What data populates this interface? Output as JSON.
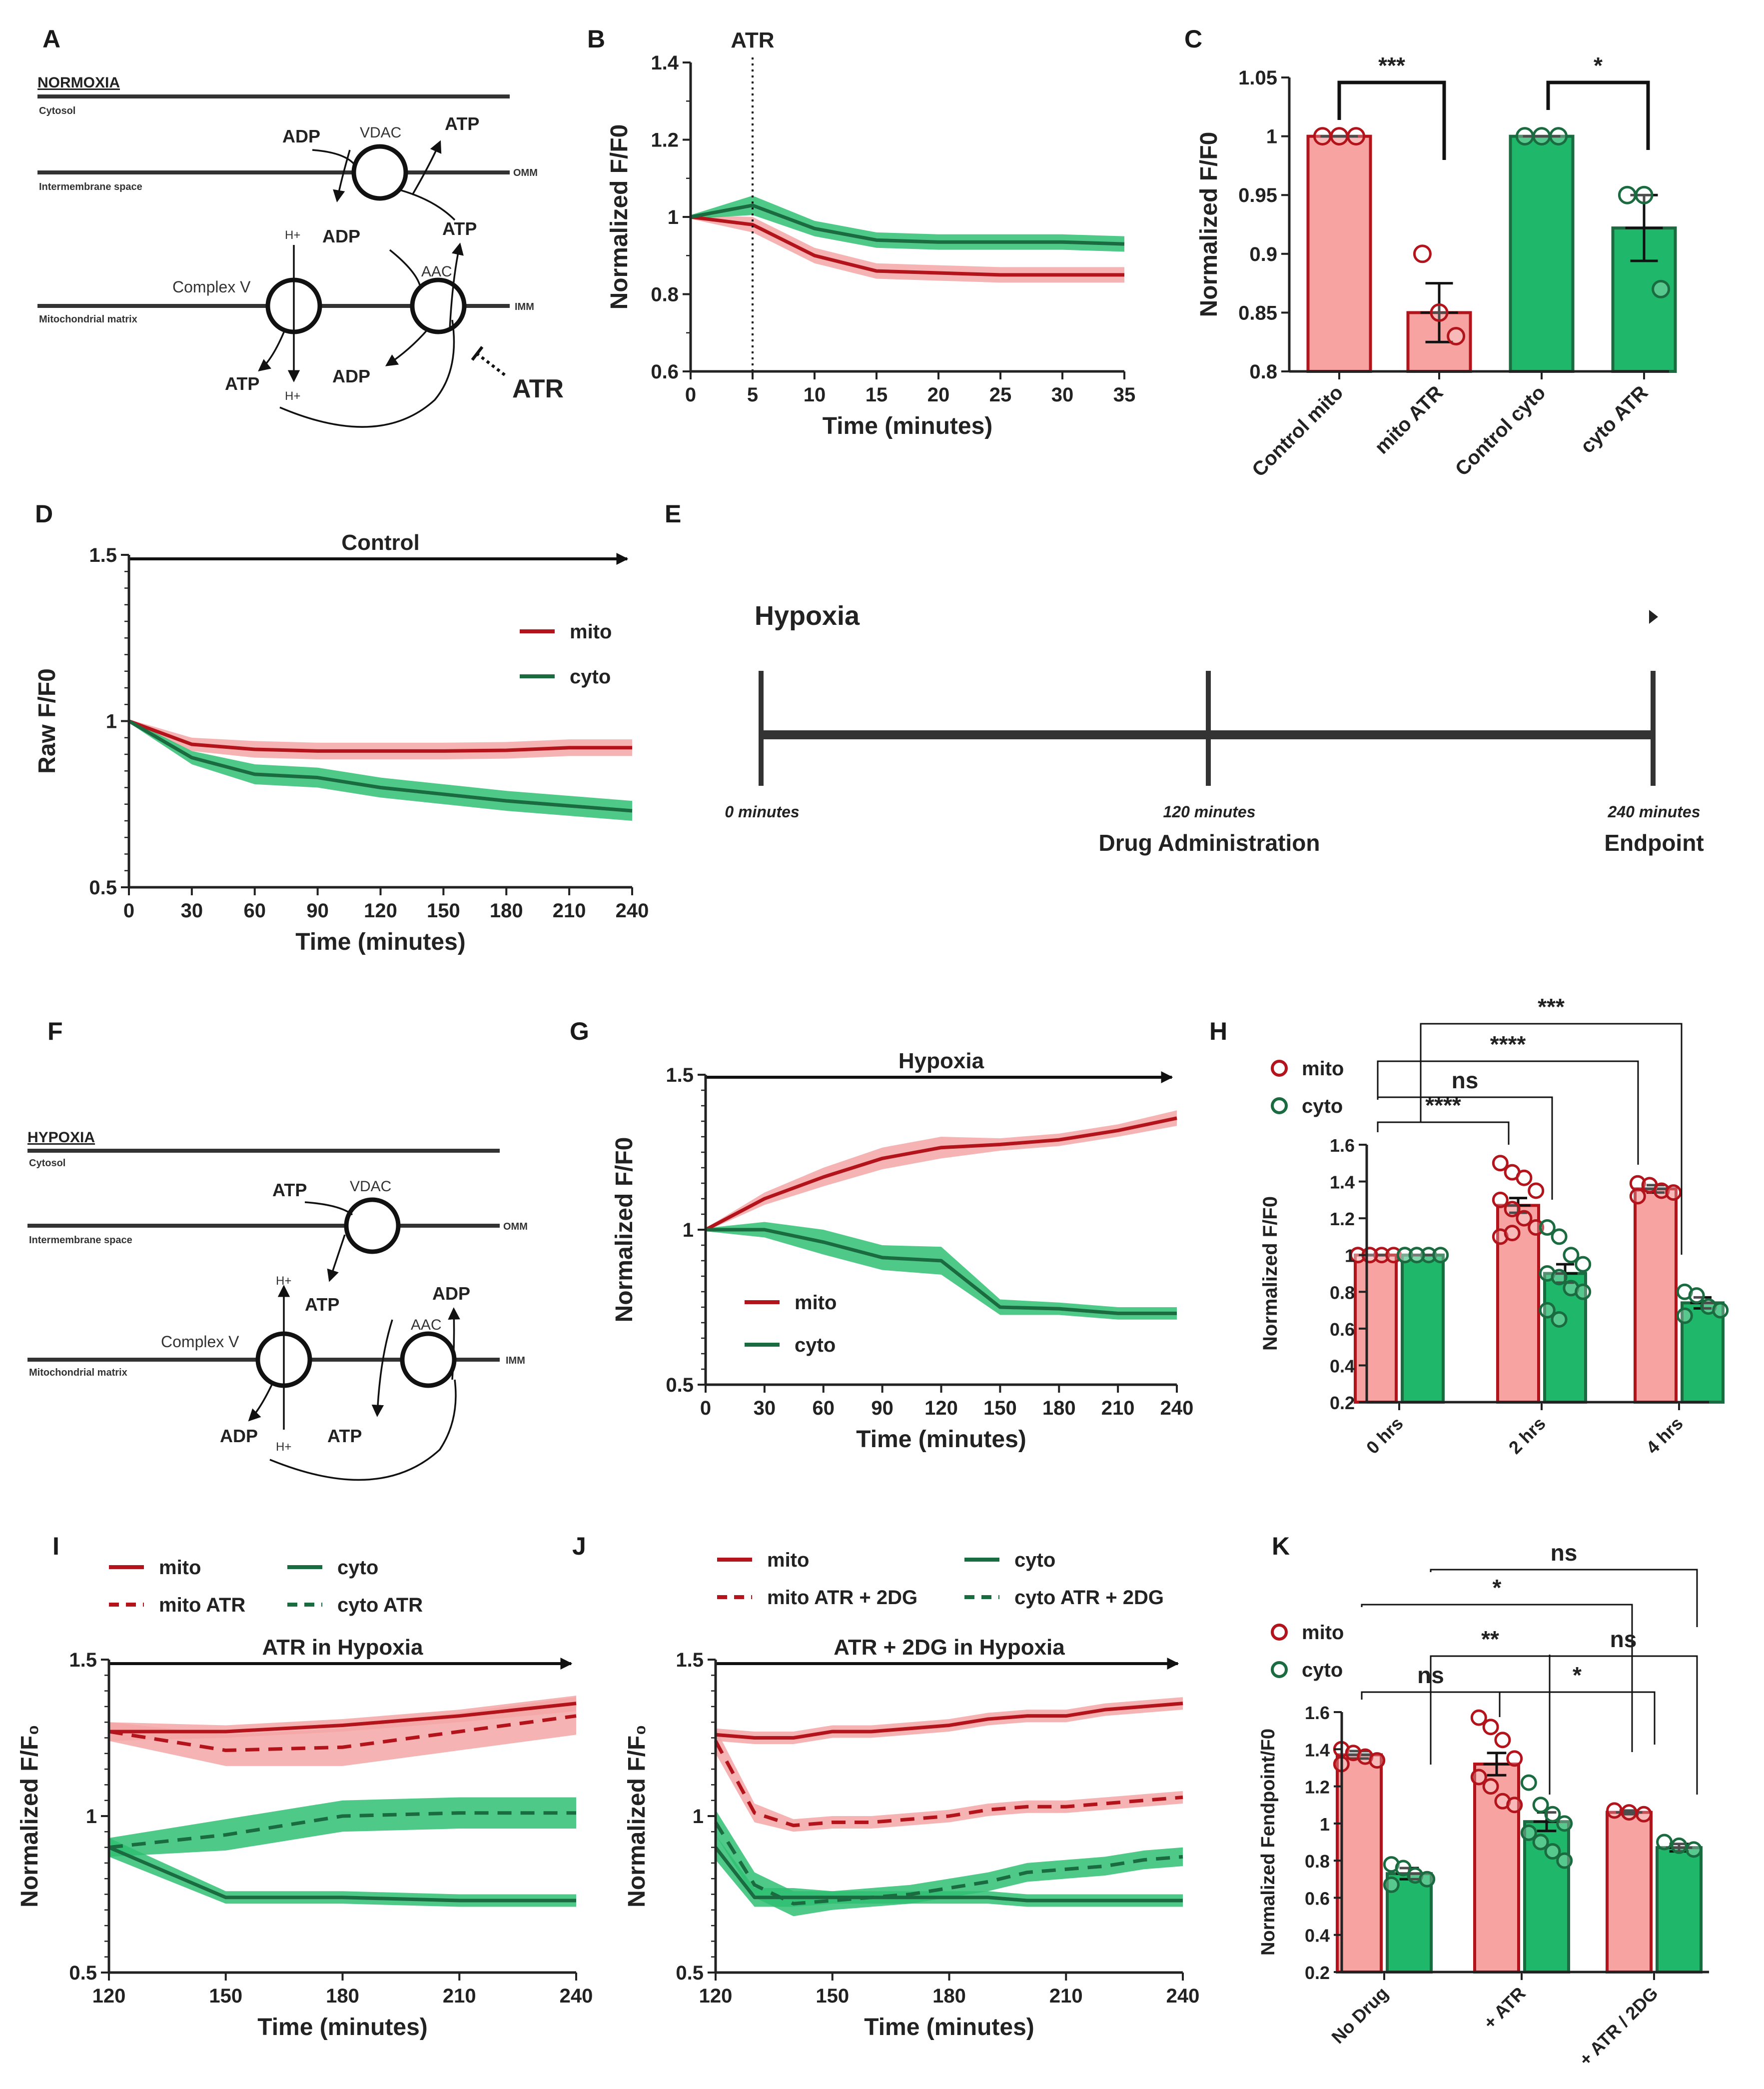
{
  "colors": {
    "mito_line": "#b3131b",
    "mito_band": "#f4a6a6",
    "mito_bar": "#f6a3a1",
    "cyto_line": "#1b6b40",
    "cyto_band": "#2fbf72",
    "cyto_bar": "#1fb76a",
    "axis": "#222222"
  },
  "panel_letters": [
    "A",
    "B",
    "C",
    "D",
    "E",
    "F",
    "G",
    "H",
    "I",
    "J",
    "K"
  ],
  "diagram_A": {
    "title": "NORMOXIA",
    "compartment_top": "Cytosol",
    "compartment_mid": "Intermembrane space",
    "compartment_bottom": "Mitochondrial matrix",
    "omm": "OMM",
    "imm": "IMM",
    "vdac": "VDAC",
    "complex_v": "Complex V",
    "aac": "AAC",
    "adp": "ADP",
    "atp": "ATP",
    "h_plus": "H+",
    "inhibitor": "ATR"
  },
  "diagram_F": {
    "title": "HYPOXIA",
    "compartment_top": "Cytosol",
    "compartment_mid": "Intermembrane space",
    "compartment_bottom": "Mitochondrial matrix",
    "omm": "OMM",
    "imm": "IMM",
    "vdac": "VDAC",
    "complex_v": "Complex V",
    "aac": "AAC",
    "adp": "ADP",
    "atp": "ATP",
    "h_plus": "H+"
  },
  "timeline_E": {
    "title": "Hypoxia",
    "t0": "0 minutes",
    "t1": "120 minutes",
    "t2": "240 minutes",
    "label1": "Drug Administration",
    "label2": "Endpoint"
  },
  "chart_data": [
    {
      "id": "B",
      "type": "line",
      "ylabel": "Normalized F/F0",
      "xlabel": "Time (minutes)",
      "xlim": [
        0,
        35
      ],
      "ylim": [
        0.6,
        1.4
      ],
      "xticks": [
        0,
        5,
        10,
        15,
        20,
        25,
        30,
        35
      ],
      "yticks": [
        0.6,
        0.8,
        1.0,
        1.2,
        1.4
      ],
      "vline": {
        "x": 5,
        "label": "ATR"
      },
      "series": [
        {
          "name": "mito",
          "x": [
            0,
            5,
            10,
            15,
            20,
            25,
            30,
            35
          ],
          "y": [
            1.0,
            0.98,
            0.9,
            0.86,
            0.855,
            0.85,
            0.85,
            0.85
          ],
          "err": [
            0.005,
            0.02,
            0.02,
            0.02,
            0.02,
            0.02,
            0.02,
            0.02
          ]
        },
        {
          "name": "cyto",
          "x": [
            0,
            5,
            10,
            15,
            20,
            25,
            30,
            35
          ],
          "y": [
            1.0,
            1.03,
            0.97,
            0.94,
            0.935,
            0.935,
            0.935,
            0.93
          ],
          "err": [
            0.005,
            0.025,
            0.02,
            0.02,
            0.02,
            0.02,
            0.02,
            0.02
          ]
        }
      ]
    },
    {
      "id": "C",
      "type": "bar",
      "ylabel": "Normalized F/F0",
      "ylim": [
        0.8,
        1.05
      ],
      "yticks": [
        0.8,
        0.85,
        0.9,
        0.95,
        1.0,
        1.05
      ],
      "categories": [
        "Control mito",
        "mito ATR",
        "Control cyto",
        "cyto ATR"
      ],
      "values": [
        1.0,
        0.85,
        1.0,
        0.922
      ],
      "sem": [
        0.0,
        0.025,
        0.0,
        0.028
      ],
      "points": [
        [
          1.0,
          1.0,
          1.0
        ],
        [
          0.9,
          0.85,
          0.83
        ],
        [
          1.0,
          1.0,
          1.0
        ],
        [
          0.95,
          0.95,
          0.87
        ]
      ],
      "series_of": [
        "mito",
        "mito",
        "cyto",
        "cyto"
      ],
      "comparisons": [
        {
          "a": 0,
          "b": 1,
          "label": "***"
        },
        {
          "a": 2,
          "b": 3,
          "label": "*"
        }
      ]
    },
    {
      "id": "D",
      "type": "line",
      "title": "Control",
      "ylabel": "Raw F/F0",
      "xlabel": "Time (minutes)",
      "xlim": [
        0,
        240
      ],
      "ylim": [
        0.5,
        1.5
      ],
      "xticks": [
        0,
        30,
        60,
        90,
        120,
        150,
        180,
        210,
        240
      ],
      "yticks": [
        0.5,
        1.0,
        1.5
      ],
      "legend": [
        "mito",
        "cyto"
      ],
      "series": [
        {
          "name": "mito",
          "x": [
            0,
            30,
            60,
            90,
            120,
            150,
            180,
            210,
            240
          ],
          "y": [
            1.0,
            0.93,
            0.915,
            0.91,
            0.91,
            0.91,
            0.912,
            0.92,
            0.92
          ],
          "err": [
            0.005,
            0.02,
            0.025,
            0.025,
            0.025,
            0.025,
            0.025,
            0.025,
            0.025
          ]
        },
        {
          "name": "cyto",
          "x": [
            0,
            30,
            60,
            90,
            120,
            150,
            180,
            210,
            240
          ],
          "y": [
            1.0,
            0.89,
            0.84,
            0.83,
            0.8,
            0.78,
            0.76,
            0.745,
            0.73
          ],
          "err": [
            0.005,
            0.02,
            0.03,
            0.03,
            0.03,
            0.03,
            0.03,
            0.03,
            0.03
          ]
        }
      ]
    },
    {
      "id": "G",
      "type": "line",
      "title": "Hypoxia",
      "ylabel": "Normalized F/F0",
      "xlabel": "Time (minutes)",
      "xlim": [
        0,
        240
      ],
      "ylim": [
        0.5,
        1.5
      ],
      "xticks": [
        0,
        30,
        60,
        90,
        120,
        150,
        180,
        210,
        240
      ],
      "yticks": [
        0.5,
        1.0,
        1.5
      ],
      "legend": [
        "mito",
        "cyto"
      ],
      "series": [
        {
          "name": "mito",
          "x": [
            0,
            30,
            60,
            90,
            120,
            150,
            180,
            210,
            240
          ],
          "y": [
            1.0,
            1.1,
            1.17,
            1.23,
            1.265,
            1.275,
            1.29,
            1.32,
            1.36
          ],
          "err": [
            0.005,
            0.02,
            0.03,
            0.035,
            0.035,
            0.02,
            0.02,
            0.02,
            0.025
          ]
        },
        {
          "name": "cyto",
          "x": [
            0,
            30,
            60,
            90,
            120,
            150,
            180,
            210,
            240
          ],
          "y": [
            1.0,
            1.0,
            0.96,
            0.91,
            0.9,
            0.75,
            0.745,
            0.73,
            0.73
          ],
          "err": [
            0.005,
            0.025,
            0.04,
            0.04,
            0.045,
            0.025,
            0.02,
            0.02,
            0.02
          ]
        }
      ]
    },
    {
      "id": "H",
      "type": "bar",
      "ylabel": "Normalized F/F0",
      "ylim": [
        0.2,
        1.6
      ],
      "yticks": [
        0.2,
        0.4,
        0.6,
        0.8,
        1.0,
        1.2,
        1.4,
        1.6
      ],
      "categories": [
        "0 hrs",
        "2 hrs",
        "4 hrs"
      ],
      "legend": [
        "mito",
        "cyto"
      ],
      "series": [
        {
          "name": "mito",
          "values": [
            1.0,
            1.27,
            1.36
          ],
          "sem": [
            0.0,
            0.04,
            0.02
          ],
          "points": [
            [
              1.0,
              1.0,
              1.0,
              1.0,
              1.0,
              1.0
            ],
            [
              1.5,
              1.45,
              1.42,
              1.35,
              1.3,
              1.25,
              1.2,
              1.15,
              1.1,
              1.12
            ],
            [
              1.39,
              1.38,
              1.35,
              1.34,
              1.32
            ]
          ]
        },
        {
          "name": "cyto",
          "values": [
            1.0,
            0.9,
            0.74
          ],
          "sem": [
            0.0,
            0.05,
            0.03
          ],
          "points": [
            [
              1.0,
              1.0,
              1.0,
              1.0,
              1.0,
              1.0
            ],
            [
              1.15,
              1.1,
              1.0,
              0.95,
              0.9,
              0.88,
              0.82,
              0.8,
              0.7,
              0.65
            ],
            [
              0.8,
              0.78,
              0.72,
              0.7,
              0.67
            ]
          ]
        }
      ],
      "comparisons": [
        {
          "a": "0 hrs mito",
          "b": "2 hrs mito",
          "label": "****"
        },
        {
          "a": "0 hrs mito",
          "b": "2 hrs cyto",
          "label": "ns"
        },
        {
          "a": "0 hrs mito",
          "b": "4 hrs mito",
          "label": "****"
        },
        {
          "a": "0 hrs cyto",
          "b": "4 hrs cyto",
          "label": "***"
        }
      ]
    },
    {
      "id": "I",
      "type": "line",
      "title": "ATR in Hypoxia",
      "ylabel": "Normalized F/F₀",
      "xlabel": "Time (minutes)",
      "xlim": [
        120,
        240
      ],
      "ylim": [
        0.5,
        1.5
      ],
      "xticks": [
        120,
        150,
        180,
        210,
        240
      ],
      "yticks": [
        0.5,
        1.0,
        1.5
      ],
      "legend": [
        "mito",
        "cyto",
        "mito ATR",
        "cyto ATR"
      ],
      "series": [
        {
          "name": "mito",
          "dashed": false,
          "x": [
            120,
            150,
            180,
            210,
            240
          ],
          "y": [
            1.27,
            1.27,
            1.29,
            1.32,
            1.36
          ],
          "err": [
            0.03,
            0.02,
            0.02,
            0.02,
            0.025
          ]
        },
        {
          "name": "mito ATR",
          "dashed": true,
          "x": [
            120,
            150,
            180,
            210,
            240
          ],
          "y": [
            1.27,
            1.21,
            1.22,
            1.27,
            1.32
          ],
          "err": [
            0.03,
            0.05,
            0.06,
            0.06,
            0.06
          ]
        },
        {
          "name": "cyto",
          "dashed": false,
          "x": [
            120,
            150,
            180,
            210,
            240
          ],
          "y": [
            0.9,
            0.74,
            0.74,
            0.73,
            0.73
          ],
          "err": [
            0.03,
            0.02,
            0.02,
            0.02,
            0.02
          ]
        },
        {
          "name": "cyto ATR",
          "dashed": true,
          "x": [
            120,
            150,
            180,
            210,
            240
          ],
          "y": [
            0.9,
            0.94,
            1.0,
            1.01,
            1.01
          ],
          "err": [
            0.03,
            0.05,
            0.05,
            0.05,
            0.05
          ]
        }
      ]
    },
    {
      "id": "J",
      "type": "line",
      "title": "ATR + 2DG in Hypoxia",
      "ylabel": "Normalized F/F₀",
      "xlabel": "Time (minutes)",
      "xlim": [
        120,
        240
      ],
      "ylim": [
        0.5,
        1.5
      ],
      "xticks": [
        120,
        150,
        180,
        210,
        240
      ],
      "yticks": [
        0.5,
        1.0,
        1.5
      ],
      "legend": [
        "mito",
        "cyto",
        "mito ATR + 2DG",
        "cyto ATR + 2DG"
      ],
      "series": [
        {
          "name": "mito",
          "dashed": false,
          "x": [
            120,
            130,
            140,
            150,
            160,
            170,
            180,
            190,
            200,
            210,
            220,
            230,
            240
          ],
          "y": [
            1.26,
            1.25,
            1.25,
            1.27,
            1.27,
            1.28,
            1.29,
            1.31,
            1.32,
            1.32,
            1.34,
            1.35,
            1.36
          ],
          "err": [
            0.02,
            0.02,
            0.02,
            0.02,
            0.02,
            0.02,
            0.02,
            0.02,
            0.02,
            0.02,
            0.02,
            0.02,
            0.02
          ]
        },
        {
          "name": "mito ATR + 2DG",
          "dashed": true,
          "x": [
            120,
            130,
            140,
            150,
            160,
            170,
            180,
            190,
            200,
            210,
            220,
            230,
            240
          ],
          "y": [
            1.24,
            1.01,
            0.97,
            0.98,
            0.98,
            0.99,
            1.0,
            1.02,
            1.03,
            1.03,
            1.04,
            1.05,
            1.06
          ],
          "err": [
            0.04,
            0.03,
            0.02,
            0.02,
            0.02,
            0.02,
            0.02,
            0.02,
            0.02,
            0.02,
            0.02,
            0.02,
            0.02
          ]
        },
        {
          "name": "cyto",
          "dashed": false,
          "x": [
            120,
            130,
            140,
            150,
            160,
            170,
            180,
            190,
            200,
            210,
            220,
            230,
            240
          ],
          "y": [
            0.9,
            0.74,
            0.74,
            0.74,
            0.74,
            0.74,
            0.74,
            0.74,
            0.73,
            0.73,
            0.73,
            0.73,
            0.73
          ],
          "err": [
            0.04,
            0.03,
            0.03,
            0.02,
            0.02,
            0.02,
            0.02,
            0.02,
            0.02,
            0.02,
            0.02,
            0.02,
            0.02
          ]
        },
        {
          "name": "cyto ATR + 2DG",
          "dashed": true,
          "x": [
            120,
            130,
            140,
            150,
            160,
            170,
            180,
            190,
            200,
            210,
            220,
            230,
            240
          ],
          "y": [
            0.98,
            0.78,
            0.72,
            0.73,
            0.74,
            0.75,
            0.77,
            0.79,
            0.82,
            0.83,
            0.84,
            0.86,
            0.87
          ],
          "err": [
            0.04,
            0.04,
            0.04,
            0.03,
            0.03,
            0.03,
            0.03,
            0.03,
            0.03,
            0.03,
            0.03,
            0.03,
            0.03
          ]
        }
      ]
    },
    {
      "id": "K",
      "type": "bar",
      "ylabel": "Normalized Fendpoint/F0",
      "ylim": [
        0.2,
        1.6
      ],
      "yticks": [
        0.2,
        0.4,
        0.6,
        0.8,
        1.0,
        1.2,
        1.4,
        1.6
      ],
      "categories": [
        "No Drug",
        "+ ATR",
        "+ ATR / 2DG"
      ],
      "legend": [
        "mito",
        "cyto"
      ],
      "series": [
        {
          "name": "mito",
          "values": [
            1.37,
            1.32,
            1.06
          ],
          "sem": [
            0.02,
            0.06,
            0.01
          ],
          "points": [
            [
              1.4,
              1.38,
              1.36,
              1.34,
              1.32
            ],
            [
              1.57,
              1.52,
              1.45,
              1.35,
              1.25,
              1.2,
              1.12,
              1.1
            ],
            [
              1.07,
              1.06,
              1.05
            ]
          ]
        },
        {
          "name": "cyto",
          "values": [
            0.73,
            1.01,
            0.87
          ],
          "sem": [
            0.03,
            0.05,
            0.02
          ],
          "points": [
            [
              0.78,
              0.76,
              0.72,
              0.7,
              0.67
            ],
            [
              1.22,
              1.1,
              1.05,
              1.0,
              0.95,
              0.9,
              0.85,
              0.8
            ],
            [
              0.9,
              0.88,
              0.86
            ]
          ]
        }
      ],
      "comparisons": [
        {
          "a": "No Drug mito",
          "b": "+ ATR mito",
          "label": "ns"
        },
        {
          "a": "No Drug cyto",
          "b": "+ ATR cyto",
          "label": "**"
        },
        {
          "a": "No Drug mito",
          "b": "+ ATR / 2DG mito",
          "label": "*"
        },
        {
          "a": "No Drug cyto",
          "b": "+ ATR / 2DG cyto",
          "label": "ns"
        },
        {
          "a": "+ ATR mito",
          "b": "+ ATR / 2DG mito",
          "label": "*"
        },
        {
          "a": "+ ATR cyto",
          "b": "+ ATR / 2DG cyto",
          "label": "ns"
        }
      ]
    }
  ]
}
